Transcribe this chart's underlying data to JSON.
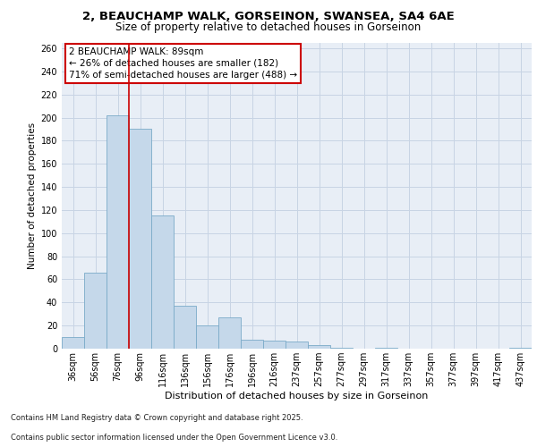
{
  "title_line1": "2, BEAUCHAMP WALK, GORSEINON, SWANSEA, SA4 6AE",
  "title_line2": "Size of property relative to detached houses in Gorseinon",
  "xlabel": "Distribution of detached houses by size in Gorseinon",
  "ylabel": "Number of detached properties",
  "categories": [
    "36sqm",
    "56sqm",
    "76sqm",
    "96sqm",
    "116sqm",
    "136sqm",
    "156sqm",
    "176sqm",
    "196sqm",
    "216sqm",
    "237sqm",
    "257sqm",
    "277sqm",
    "297sqm",
    "317sqm",
    "337sqm",
    "357sqm",
    "377sqm",
    "397sqm",
    "417sqm",
    "437sqm"
  ],
  "values": [
    10,
    66,
    202,
    190,
    115,
    37,
    20,
    27,
    8,
    7,
    6,
    3,
    1,
    0,
    1,
    0,
    0,
    0,
    0,
    0,
    1
  ],
  "bar_color": "#c5d8ea",
  "bar_edge_color": "#7aaac8",
  "grid_color": "#c8d4e4",
  "background_color": "#e8eef6",
  "vline_x": 2.5,
  "vline_color": "#cc0000",
  "annotation_text": "2 BEAUCHAMP WALK: 89sqm\n← 26% of detached houses are smaller (182)\n71% of semi-detached houses are larger (488) →",
  "annotation_box_color": "#ffffff",
  "annotation_box_edge": "#cc0000",
  "footer_line1": "Contains HM Land Registry data © Crown copyright and database right 2025.",
  "footer_line2": "Contains public sector information licensed under the Open Government Licence v3.0.",
  "ylim": [
    0,
    265
  ],
  "yticks": [
    0,
    20,
    40,
    60,
    80,
    100,
    120,
    140,
    160,
    180,
    200,
    220,
    240,
    260
  ],
  "title1_fontsize": 9.5,
  "title2_fontsize": 8.5,
  "xlabel_fontsize": 8,
  "ylabel_fontsize": 7.5,
  "tick_fontsize": 7,
  "annotation_fontsize": 7.5,
  "footer_fontsize": 6
}
